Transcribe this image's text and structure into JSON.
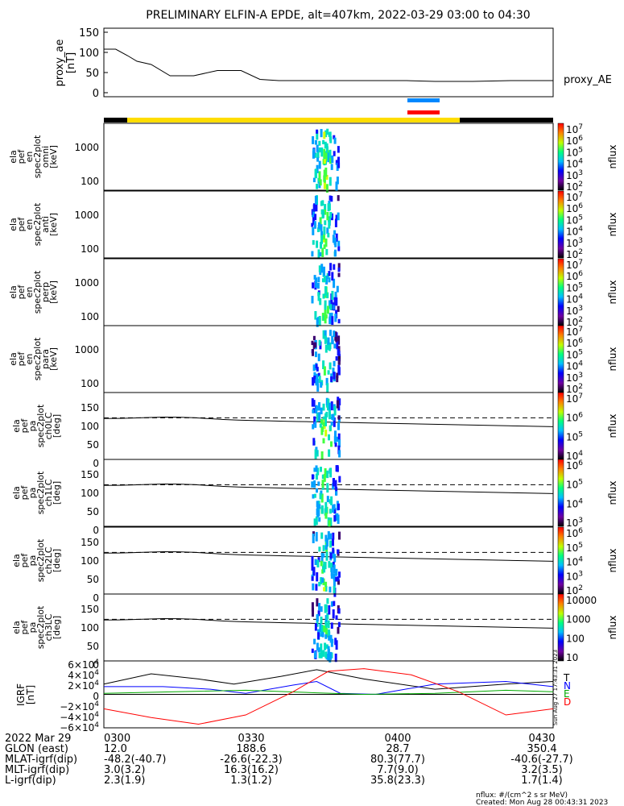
{
  "title": "PRELIMINARY ELFIN-A EPDE, alt=407km, 2022-03-29 03:00 to 04:30",
  "chart_data": [
    {
      "type": "line",
      "ylabel": [
        "proxy_ae",
        "[nT]"
      ],
      "yticks": [
        "150",
        "100",
        "50",
        "0"
      ],
      "ylim": [
        -10,
        160
      ],
      "series": [
        {
          "name": "proxy_AE",
          "x_min": [
            0,
            5,
            10,
            14,
            20,
            28,
            38,
            48,
            58,
            66,
            74,
            82,
            100,
            118,
            128,
            140,
            156,
            172,
            190
          ],
          "values": [
            108,
            108,
            92,
            78,
            70,
            42,
            42,
            55,
            55,
            33,
            30,
            30,
            30,
            30,
            30,
            28,
            28,
            30,
            30
          ]
        }
      ]
    },
    {
      "type": "heatmap",
      "ylabel": [
        "ela",
        "pef",
        "en",
        "spec2plot",
        "omni",
        "[keV]"
      ],
      "yticks": [
        "1000",
        "100"
      ],
      "ylog": true,
      "colorbar_label": "nflux",
      "colorbar_ticks": [
        "10^7",
        "10^6",
        "10^5",
        "10^4",
        "10^3",
        "10^2"
      ]
    },
    {
      "type": "heatmap",
      "ylabel": [
        "ela",
        "pef",
        "en",
        "spec2plot",
        "anti",
        "[keV]"
      ],
      "yticks": [
        "1000",
        "100"
      ],
      "ylog": true,
      "colorbar_label": "nflux",
      "colorbar_ticks": [
        "10^7",
        "10^6",
        "10^5",
        "10^4",
        "10^3",
        "10^2"
      ]
    },
    {
      "type": "heatmap",
      "ylabel": [
        "ela",
        "pef",
        "en",
        "spec2plot",
        "perp",
        "[keV]"
      ],
      "yticks": [
        "1000",
        "100"
      ],
      "ylog": true,
      "colorbar_label": "nflux",
      "colorbar_ticks": [
        "10^7",
        "10^6",
        "10^5",
        "10^4",
        "10^3",
        "10^2"
      ]
    },
    {
      "type": "heatmap",
      "ylabel": [
        "ela",
        "pef",
        "en",
        "spec2plot",
        "para",
        "[keV]"
      ],
      "yticks": [
        "1000",
        "100"
      ],
      "ylog": true,
      "colorbar_label": "nflux",
      "colorbar_ticks": [
        "10^7",
        "10^6",
        "10^5",
        "10^4",
        "10^3",
        "10^2"
      ]
    },
    {
      "type": "heatmap",
      "ylabel": [
        "ela",
        "pef",
        "pa",
        "spec2plot",
        "ch0LC",
        "[deg]"
      ],
      "yticks": [
        "150",
        "100",
        "50",
        "0"
      ],
      "ylim": [
        0,
        180
      ],
      "colorbar_label": "nflux",
      "colorbar_ticks": [
        "10^7",
        "10^6",
        "10^5",
        "10^4"
      ]
    },
    {
      "type": "heatmap",
      "ylabel": [
        "ela",
        "pef",
        "pa",
        "spec2plot",
        "ch1LC",
        "[deg]"
      ],
      "yticks": [
        "150",
        "100",
        "50",
        "0"
      ],
      "ylim": [
        0,
        180
      ],
      "colorbar_label": "nflux",
      "colorbar_ticks": [
        "10^6",
        "10^5",
        "10^4",
        "10^3"
      ]
    },
    {
      "type": "heatmap",
      "ylabel": [
        "ela",
        "pef",
        "pa",
        "spec2plot",
        "ch2LC",
        "[deg]"
      ],
      "yticks": [
        "150",
        "100",
        "50",
        "0"
      ],
      "ylim": [
        0,
        180
      ],
      "colorbar_label": "nflux",
      "colorbar_ticks": [
        "10^6",
        "10^5",
        "10^4",
        "10^3",
        "10^2"
      ]
    },
    {
      "type": "heatmap",
      "ylabel": [
        "ela",
        "pef",
        "pa",
        "spec2plot",
        "ch3LC",
        "[deg]"
      ],
      "yticks": [
        "150",
        "100",
        "50",
        "0"
      ],
      "ylim": [
        0,
        180
      ],
      "colorbar_label": "nflux",
      "colorbar_ticks": [
        "10000",
        "1000",
        "100",
        "10"
      ]
    },
    {
      "type": "line",
      "ylabel": [
        "IGRF",
        "[nT]"
      ],
      "yticks": [
        "6×10^4",
        "4×10^4",
        "2×10^4",
        "0",
        "−2×10^4",
        "−4×10^4",
        "−6×10^4"
      ],
      "ylim": [
        -65000,
        65000
      ],
      "series": [
        {
          "name": "T",
          "color": "#000000",
          "x_min": [
            0,
            20,
            40,
            55,
            75,
            90,
            110,
            140,
            170,
            190
          ],
          "values": [
            20000,
            40000,
            30000,
            20000,
            35000,
            48000,
            30000,
            10000,
            20000,
            25000
          ]
        },
        {
          "name": "N",
          "color": "#0000ff",
          "x_min": [
            0,
            25,
            45,
            60,
            80,
            90,
            100,
            115,
            140,
            170,
            190
          ],
          "values": [
            15000,
            15000,
            10000,
            2000,
            18000,
            25000,
            2000,
            0,
            20000,
            25000,
            15000
          ]
        },
        {
          "name": "E",
          "color": "#00aa00",
          "x_min": [
            0,
            30,
            60,
            90,
            110,
            140,
            170,
            190
          ],
          "values": [
            2000,
            5000,
            8000,
            3000,
            0,
            2000,
            8000,
            5000
          ]
        },
        {
          "name": "D",
          "color": "#ff0000",
          "x_min": [
            0,
            20,
            40,
            60,
            80,
            95,
            110,
            130,
            150,
            170,
            190
          ],
          "values": [
            -28000,
            -45000,
            -58000,
            -40000,
            5000,
            45000,
            50000,
            38000,
            5000,
            -40000,
            -28000
          ]
        }
      ]
    }
  ],
  "time_ticks": [
    "0300",
    "0330",
    "0400",
    "0430"
  ],
  "orbit_table": [
    {
      "label": "2022 Mar 29",
      "v": [
        "0300",
        "0330",
        "0400",
        "0430"
      ]
    },
    {
      "label": "GLON (east)",
      "v": [
        "12.0",
        "188.6",
        "28.7",
        "350.4"
      ]
    },
    {
      "label": "MLAT-igrf(dip)",
      "v": [
        "-48.2(-40.7)",
        "-26.6(-22.3)",
        "80.3(77.7)",
        "-40.6(-27.7)"
      ]
    },
    {
      "label": "MLT-igrf(dip)",
      "v": [
        "3.0(3.2)",
        "16.3(16.2)",
        "7.7(9.0)",
        "3.2(3.5)"
      ]
    },
    {
      "label": "L-igrf(dip)",
      "v": [
        "2.3(1.9)",
        "1.3(1.2)",
        "35.8(23.3)",
        "1.7(1.4)"
      ]
    }
  ],
  "footer_units": "nflux: #/(cm^2 s sr MeV)",
  "footer_created": "Created: Mon Aug 28 00:43:31 2023",
  "side_stamp": "Sun Aug 27 17:43:31 2023",
  "colors": {
    "science_bar": "#ffdd00",
    "dark_bar": "#000000",
    "ida_blue": "#0088ff",
    "ida_red": "#ff0000"
  }
}
